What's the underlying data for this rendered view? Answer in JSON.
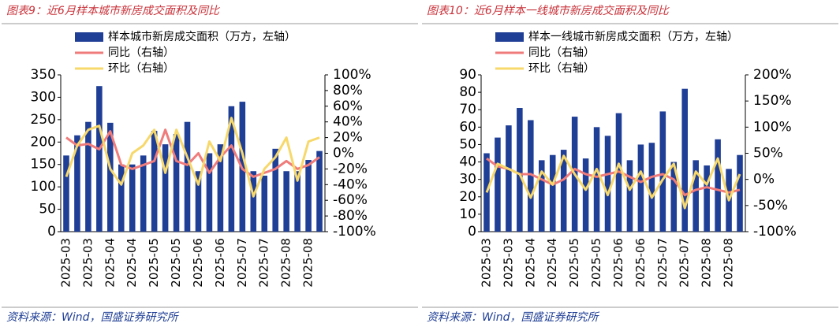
{
  "chart_data": [
    {
      "type": "bar-line",
      "title": "图表9：近6月样本城市新房成交面积及同比",
      "source": "资料来源：Wind，国盛证券研究所",
      "categories": [
        "2025-03",
        null,
        "2025-03",
        null,
        "2025-04",
        null,
        "2025-04",
        null,
        "2025-05",
        null,
        "2025-05",
        null,
        "2025-06",
        null,
        "2025-06",
        null,
        "2025-07",
        null,
        "2025-07",
        null,
        "2025-08",
        null,
        "2025-08",
        null
      ],
      "series": [
        {
          "name": "样本城市新房成交面积（万方，左轴）",
          "type": "bar",
          "color": "#1f3e95",
          "values": [
            170,
            215,
            245,
            325,
            243,
            150,
            150,
            170,
            225,
            195,
            218,
            245,
            135,
            175,
            195,
            280,
            290,
            135,
            125,
            185,
            135,
            135,
            160,
            180
          ]
        },
        {
          "name": "同比（右轴）",
          "type": "line",
          "axis": "y2",
          "color": "#f07b7b",
          "values": [
            20,
            10,
            12,
            5,
            28,
            -15,
            -20,
            -15,
            -10,
            30,
            -10,
            -15,
            0,
            -25,
            -5,
            10,
            -20,
            -30,
            -25,
            -20,
            -10,
            -20,
            -15,
            -5
          ]
        },
        {
          "name": "环比（右轴）",
          "type": "line",
          "axis": "y2",
          "color": "#f7d86a",
          "values": [
            -30,
            10,
            30,
            35,
            -20,
            -40,
            0,
            10,
            30,
            -25,
            30,
            -5,
            -40,
            15,
            -10,
            45,
            0,
            -55,
            -20,
            -5,
            20,
            -35,
            15,
            20
          ]
        }
      ],
      "ylim": [
        0,
        350
      ],
      "yticks": [
        0,
        50,
        100,
        150,
        200,
        250,
        300,
        350
      ],
      "y2lim": [
        -100,
        100
      ],
      "y2ticks": [
        {
          "value": 100,
          "label": "100%"
        },
        {
          "value": 80,
          "label": "80%"
        },
        {
          "value": 60,
          "label": "60%"
        },
        {
          "value": 40,
          "label": "40%"
        },
        {
          "value": 20,
          "label": "20%"
        },
        {
          "value": 0,
          "label": "0%"
        },
        {
          "value": -20,
          "label": "-20%"
        },
        {
          "value": -40,
          "label": "-40%"
        },
        {
          "value": -60,
          "label": "-60%"
        },
        {
          "value": -80,
          "label": "-80%"
        },
        {
          "value": -100,
          "label": "-100%"
        }
      ]
    },
    {
      "type": "bar-line",
      "title": "图表10：近6月样本一线城市新房成交面积及同比",
      "source": "资料来源：Wind，国盛证券研究所",
      "categories": [
        "2025-03",
        null,
        "2025-03",
        null,
        "2025-04",
        null,
        "2025-04",
        null,
        "2025-05",
        null,
        "2025-05",
        null,
        "2025-06",
        null,
        "2025-06",
        null,
        "2025-07",
        null,
        "2025-07",
        null,
        "2025-08",
        null,
        "2025-08",
        null
      ],
      "series": [
        {
          "name": "样本一线城市新房成交面积（万方，左轴）",
          "type": "bar",
          "color": "#1f3e95",
          "values": [
            45,
            54,
            61,
            71,
            64,
            41,
            44,
            47,
            66,
            42,
            60,
            55,
            68,
            41,
            50,
            51,
            69,
            40,
            82,
            41,
            38,
            53,
            36,
            44
          ]
        },
        {
          "name": "同比（右轴）",
          "type": "line",
          "axis": "y2",
          "color": "#f07b7b",
          "values": [
            40,
            25,
            20,
            10,
            10,
            0,
            -10,
            0,
            20,
            10,
            5,
            10,
            15,
            5,
            -5,
            5,
            10,
            0,
            -30,
            -20,
            -15,
            -20,
            -25,
            -20
          ]
        },
        {
          "name": "环比（右轴）",
          "type": "line",
          "axis": "y2",
          "color": "#f7d86a",
          "values": [
            -25,
            30,
            20,
            10,
            -35,
            15,
            -10,
            45,
            10,
            -20,
            20,
            -30,
            30,
            -20,
            15,
            -35,
            0,
            30,
            -55,
            15,
            -10,
            40,
            -40,
            10
          ]
        }
      ],
      "ylim": [
        0,
        90
      ],
      "yticks": [
        0,
        10,
        20,
        30,
        40,
        50,
        60,
        70,
        80,
        90
      ],
      "y2lim": [
        -100,
        200
      ],
      "y2ticks": [
        {
          "value": 200,
          "label": "200%"
        },
        {
          "value": 150,
          "label": "150%"
        },
        {
          "value": 100,
          "label": "100%"
        },
        {
          "value": 50,
          "label": "50%"
        },
        {
          "value": 0,
          "label": "0%"
        },
        {
          "value": -50,
          "label": "-50%"
        },
        {
          "value": -100,
          "label": "-100%"
        }
      ]
    }
  ]
}
